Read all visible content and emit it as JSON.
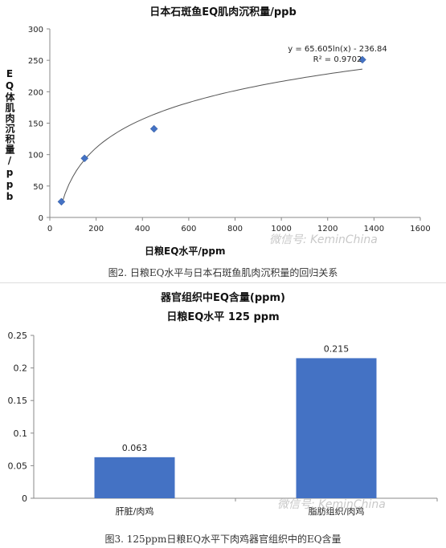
{
  "chart_data": [
    {
      "type": "scatter",
      "title": "日本石斑鱼EQ肌肉沉积量/ppb",
      "xlabel": "日粮EQ水平/ppm",
      "ylabel": "EQ体肌肉沉积量/ppb",
      "xlim": [
        0,
        1600
      ],
      "ylim": [
        0,
        300
      ],
      "x_ticks": [
        "0",
        "200",
        "400",
        "600",
        "800",
        "1000",
        "1200",
        "1400",
        "1600"
      ],
      "y_ticks": [
        "0",
        "50",
        "100",
        "150",
        "200",
        "250",
        "300"
      ],
      "points": [
        {
          "x": 50,
          "y": 25
        },
        {
          "x": 150,
          "y": 94
        },
        {
          "x": 450,
          "y": 141
        },
        {
          "x": 1350,
          "y": 251
        }
      ],
      "trendline": {
        "type": "log",
        "a": 65.605,
        "b": -236.84,
        "x_range": [
          50,
          1350
        ]
      },
      "equation": "y = 65.605ln(x) - 236.84",
      "r_squared": "R² = 0.9702",
      "grid": false,
      "caption": "图2. 日粮EQ水平与日本石斑鱼肌肉沉积量的回归关系",
      "watermark": "微信号: KeminChina",
      "color": "#4472c4"
    },
    {
      "type": "bar",
      "title": "器官组织中EQ含量(ppm)",
      "subtitle": "日粮EQ水平 125 ppm",
      "categories": [
        "肝脏/肉鸡",
        "脂肪组织/肉鸡"
      ],
      "values": [
        0.063,
        0.215
      ],
      "data_labels": [
        "0.063",
        "0.215"
      ],
      "ylim": [
        0,
        0.25
      ],
      "y_ticks": [
        "0",
        "0.05",
        "0.1",
        "0.15",
        "0.2",
        "0.25"
      ],
      "grid": false,
      "caption": "图3. 125ppm日粮EQ水平下肉鸡器官组织中的EQ含量",
      "watermark": "微信号: KeminChina",
      "color": "#4472c4"
    }
  ]
}
